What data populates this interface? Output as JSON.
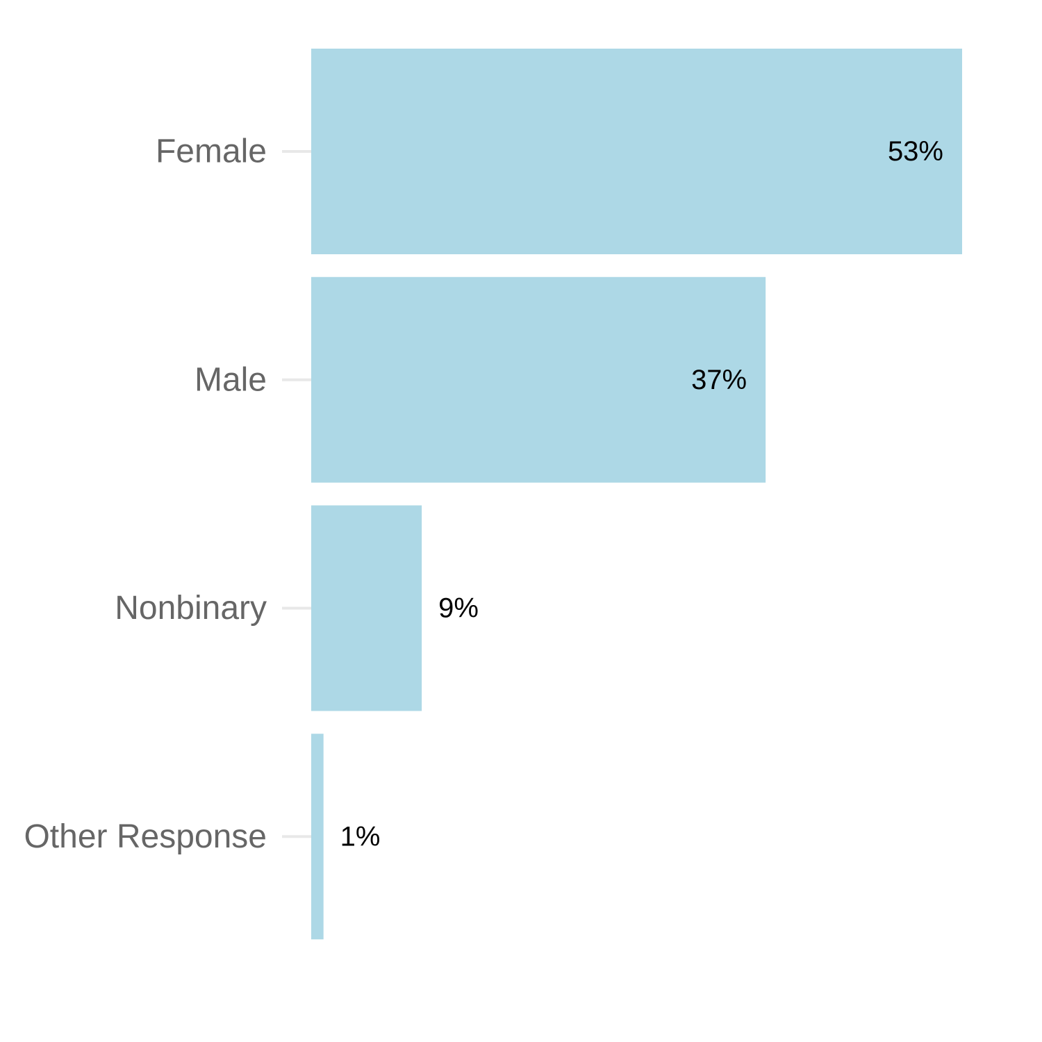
{
  "chart_data": {
    "type": "bar",
    "orientation": "horizontal",
    "categories": [
      "Female",
      "Male",
      "Nonbinary",
      "Other Response"
    ],
    "values": [
      53,
      37,
      9,
      1
    ],
    "value_labels": [
      "53%",
      "37%",
      "9%",
      "1%"
    ],
    "unit": "%",
    "title": "",
    "xlabel": "",
    "ylabel": "",
    "xlim": [
      0,
      53
    ],
    "grid": false,
    "legend": "none",
    "colors": {
      "bar": "#add8e6",
      "category_text": "#666666",
      "value_text": "#000000",
      "tick": "#e8e8e8"
    }
  }
}
